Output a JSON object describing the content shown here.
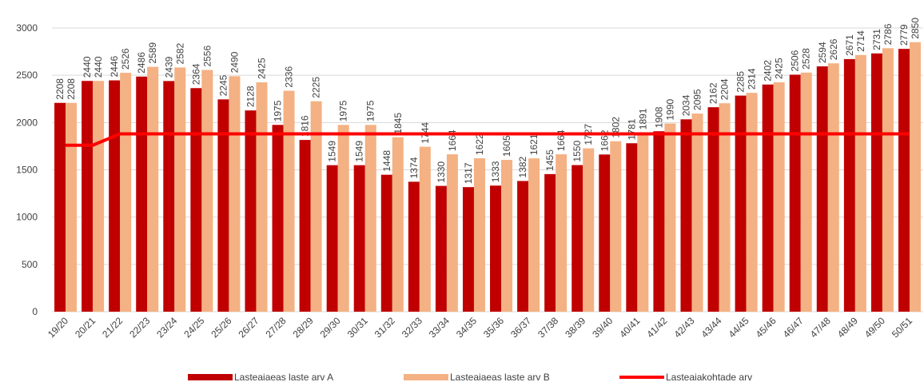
{
  "chart_data": {
    "type": "bar",
    "categories": [
      "19/20",
      "20/21",
      "21/22",
      "22/23",
      "23/24",
      "24/25",
      "25/26",
      "26/27",
      "27/28",
      "28/29",
      "29/30",
      "30/31",
      "31/32",
      "32/33",
      "33/34",
      "34/35",
      "35/36",
      "36/37",
      "37/38",
      "38/39",
      "39/40",
      "40/41",
      "41/42",
      "42/43",
      "43/44",
      "44/45",
      "45/46",
      "46/47",
      "47/48",
      "48/49",
      "49/50",
      "50/51"
    ],
    "series": [
      {
        "name": "Lasteaiaeas laste arv A",
        "color": "#c00000",
        "type": "bar",
        "values": [
          2208,
          2440,
          2446,
          2486,
          2439,
          2364,
          2245,
          2128,
          1975,
          1816,
          1549,
          1549,
          1448,
          1374,
          1330,
          1317,
          1333,
          1382,
          1455,
          1550,
          1662,
          1781,
          1908,
          2034,
          2162,
          2285,
          2402,
          2506,
          2594,
          2671,
          2731,
          2779
        ]
      },
      {
        "name": "Lasteaiaeas laste arv B",
        "color": "#f4b183",
        "type": "bar",
        "values": [
          2208,
          2440,
          2526,
          2589,
          2582,
          2556,
          2490,
          2425,
          2336,
          2225,
          1975,
          1975,
          1845,
          1744,
          1664,
          1622,
          1605,
          1621,
          1664,
          1727,
          1802,
          1891,
          1990,
          2095,
          2204,
          2314,
          2425,
          2528,
          2626,
          2714,
          2786,
          2850
        ]
      },
      {
        "name": "Lasteaiakohtade arv",
        "color": "#ff0000",
        "type": "line",
        "values": [
          1760,
          1760,
          1880,
          1880,
          1880,
          1880,
          1880,
          1880,
          1880,
          1880,
          1880,
          1880,
          1880,
          1880,
          1880,
          1880,
          1880,
          1880,
          1880,
          1880,
          1880,
          1880,
          1880,
          1880,
          1880,
          1880,
          1880,
          1880,
          1880,
          1880,
          1880,
          1880
        ]
      }
    ],
    "ylim": [
      0,
      3000
    ],
    "yticks": [
      0,
      500,
      1000,
      1500,
      2000,
      2500,
      3000
    ],
    "grid": true,
    "legend": "bottom"
  }
}
